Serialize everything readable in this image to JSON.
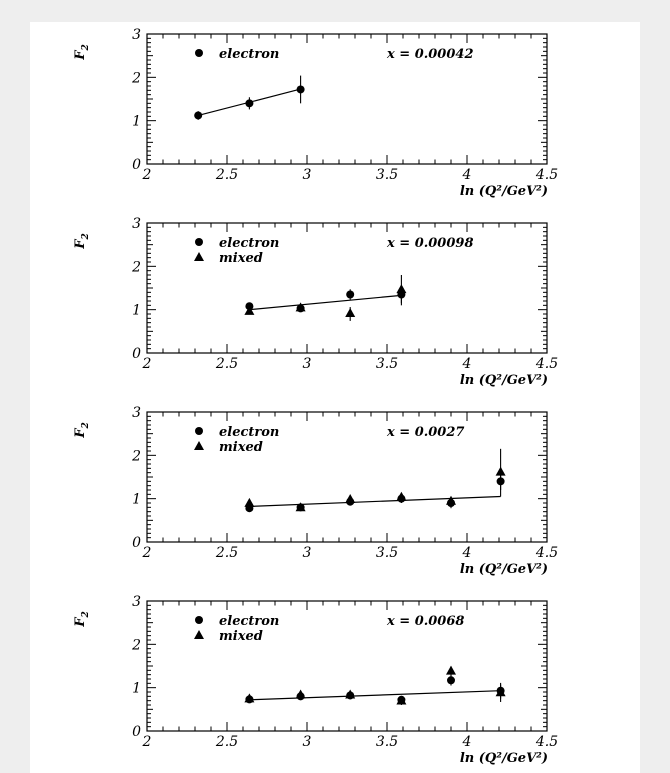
{
  "chart_data": [
    {
      "type": "scatter",
      "annotation": "x = 0.00042",
      "ylabel": "F",
      "ylabel_sub": "2",
      "xlabel": "ln (Q²/GeV²)",
      "xlim": [
        2,
        4.5
      ],
      "ylim": [
        0,
        3
      ],
      "xticks": [
        "2",
        "2.5",
        "3",
        "3.5",
        "4",
        "4.5"
      ],
      "yticks": [
        "0",
        "1",
        "2",
        "3"
      ],
      "fit_line": [
        [
          2.32,
          1.12
        ],
        [
          2.95,
          1.72
        ]
      ],
      "series": [
        {
          "name": "electron",
          "marker": "circle",
          "points": [
            {
              "x": 2.32,
              "y": 1.12,
              "err": 0.1
            },
            {
              "x": 2.64,
              "y": 1.4,
              "err": 0.14
            },
            {
              "x": 2.96,
              "y": 1.72,
              "err": 0.32
            }
          ]
        }
      ]
    },
    {
      "type": "scatter",
      "annotation": "x = 0.00098",
      "ylabel": "F",
      "ylabel_sub": "2",
      "xlabel": "ln (Q²/GeV²)",
      "xlim": [
        2,
        4.5
      ],
      "ylim": [
        0,
        3
      ],
      "xticks": [
        "2",
        "2.5",
        "3",
        "3.5",
        "4",
        "4.5"
      ],
      "yticks": [
        "0",
        "1",
        "2",
        "3"
      ],
      "fit_line": [
        [
          2.64,
          1.0
        ],
        [
          3.59,
          1.33
        ]
      ],
      "series": [
        {
          "name": "electron",
          "marker": "circle",
          "points": [
            {
              "x": 2.64,
              "y": 1.08,
              "err": 0.05
            },
            {
              "x": 2.96,
              "y": 1.03,
              "err": 0.08
            },
            {
              "x": 3.27,
              "y": 1.35,
              "err": 0.12
            },
            {
              "x": 3.59,
              "y": 1.35,
              "err": 0.2
            }
          ]
        },
        {
          "name": "mixed",
          "marker": "triangle",
          "points": [
            {
              "x": 2.64,
              "y": 0.95,
              "err": 0.06
            },
            {
              "x": 2.96,
              "y": 1.03,
              "err": 0.08
            },
            {
              "x": 3.27,
              "y": 0.9,
              "err": 0.16
            },
            {
              "x": 3.59,
              "y": 1.45,
              "err": 0.35
            }
          ]
        }
      ]
    },
    {
      "type": "scatter",
      "annotation": "x = 0.0027",
      "ylabel": "F",
      "ylabel_sub": "2",
      "xlabel": "ln (Q²/GeV²)",
      "xlim": [
        2,
        4.5
      ],
      "ylim": [
        0,
        3
      ],
      "xticks": [
        "2",
        "2.5",
        "3",
        "3.5",
        "4",
        "4.5"
      ],
      "yticks": [
        "0",
        "1",
        "2",
        "3"
      ],
      "fit_line": [
        [
          2.64,
          0.82
        ],
        [
          4.21,
          1.05
        ]
      ],
      "series": [
        {
          "name": "electron",
          "marker": "circle",
          "points": [
            {
              "x": 2.64,
              "y": 0.78,
              "err": 0.06
            },
            {
              "x": 2.96,
              "y": 0.8,
              "err": 0.05
            },
            {
              "x": 3.27,
              "y": 0.93,
              "err": 0.08
            },
            {
              "x": 3.59,
              "y": 1.0,
              "err": 0.1
            },
            {
              "x": 3.9,
              "y": 0.9,
              "err": 0.12
            },
            {
              "x": 4.21,
              "y": 1.4,
              "err": 0.2
            }
          ]
        },
        {
          "name": "mixed",
          "marker": "triangle",
          "points": [
            {
              "x": 2.64,
              "y": 0.88,
              "err": 0.06
            },
            {
              "x": 2.96,
              "y": 0.78,
              "err": 0.05
            },
            {
              "x": 3.27,
              "y": 0.97,
              "err": 0.08
            },
            {
              "x": 3.59,
              "y": 1.02,
              "err": 0.1
            },
            {
              "x": 3.9,
              "y": 0.93,
              "err": 0.12
            },
            {
              "x": 4.21,
              "y": 1.6,
              "err": 0.55
            }
          ]
        }
      ]
    },
    {
      "type": "scatter",
      "annotation": "x = 0.0068",
      "ylabel": "F",
      "ylabel_sub": "2",
      "xlabel": "ln (Q²/GeV²)",
      "xlim": [
        2,
        4.5
      ],
      "ylim": [
        0,
        3
      ],
      "xticks": [
        "2",
        "2.5",
        "3",
        "3.5",
        "4",
        "4.5"
      ],
      "yticks": [
        "0",
        "1",
        "2",
        "3"
      ],
      "fit_line": [
        [
          2.64,
          0.72
        ],
        [
          4.21,
          0.93
        ]
      ],
      "series": [
        {
          "name": "electron",
          "marker": "circle",
          "points": [
            {
              "x": 2.64,
              "y": 0.73,
              "err": 0.04
            },
            {
              "x": 2.96,
              "y": 0.8,
              "err": 0.04
            },
            {
              "x": 3.27,
              "y": 0.82,
              "err": 0.06
            },
            {
              "x": 3.59,
              "y": 0.72,
              "err": 0.08
            },
            {
              "x": 3.9,
              "y": 1.17,
              "err": 0.12
            },
            {
              "x": 4.21,
              "y": 0.93,
              "err": 0.18
            }
          ]
        },
        {
          "name": "mixed",
          "marker": "triangle",
          "points": [
            {
              "x": 2.64,
              "y": 0.73,
              "err": 0.04
            },
            {
              "x": 2.96,
              "y": 0.82,
              "err": 0.04
            },
            {
              "x": 3.27,
              "y": 0.82,
              "err": 0.06
            },
            {
              "x": 3.59,
              "y": 0.68,
              "err": 0.08
            },
            {
              "x": 3.9,
              "y": 1.37,
              "err": 0.12
            },
            {
              "x": 4.21,
              "y": 0.87,
              "err": 0.2
            }
          ]
        }
      ]
    }
  ]
}
